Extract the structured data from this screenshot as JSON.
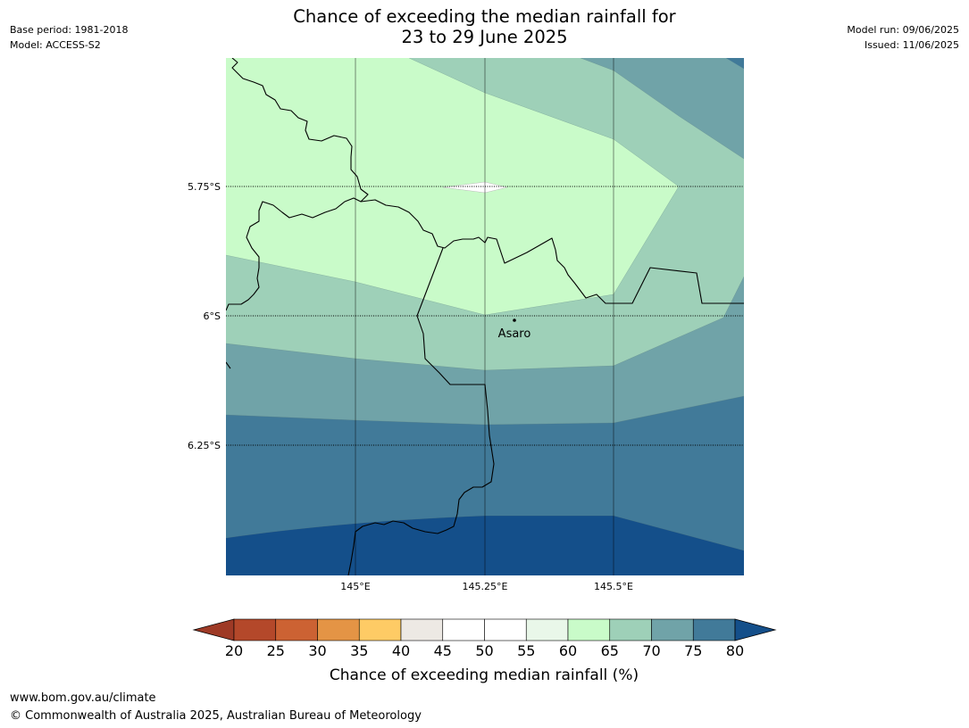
{
  "header": {
    "base_period": "Base period: 1981-2018",
    "model": "Model: ACCESS-S2",
    "model_run": "Model run: 09/06/2025",
    "issued": "Issued: 11/06/2025",
    "title_line1": "Chance of exceeding the median rainfall for",
    "title_line2": "23 to 29 June 2025"
  },
  "map": {
    "lat_labels": [
      "5.75°S",
      "6°S",
      "6.25°S"
    ],
    "lon_labels": [
      "145°E",
      "145.25°E",
      "145.5°E"
    ],
    "place": {
      "name": "Asaro"
    }
  },
  "legend": {
    "title": "Chance of exceeding median rainfall (%)",
    "ticks": [
      "20",
      "25",
      "30",
      "35",
      "40",
      "45",
      "50",
      "55",
      "60",
      "65",
      "70",
      "75",
      "80"
    ],
    "colors": [
      "#9e3a26",
      "#b4482a",
      "#cc6233",
      "#e49445",
      "#fecb65",
      "#ede9e4",
      "#ffffff",
      "#ffffff",
      "#e9f7e9",
      "#c9fbc9",
      "#9ed0b8",
      "#70a3a8",
      "#417a99",
      "#144f8a"
    ]
  },
  "footer": {
    "url": "www.bom.gov.au/climate",
    "copyright": "© Commonwealth of Australia 2025, Australian Bureau of Meteorology"
  }
}
